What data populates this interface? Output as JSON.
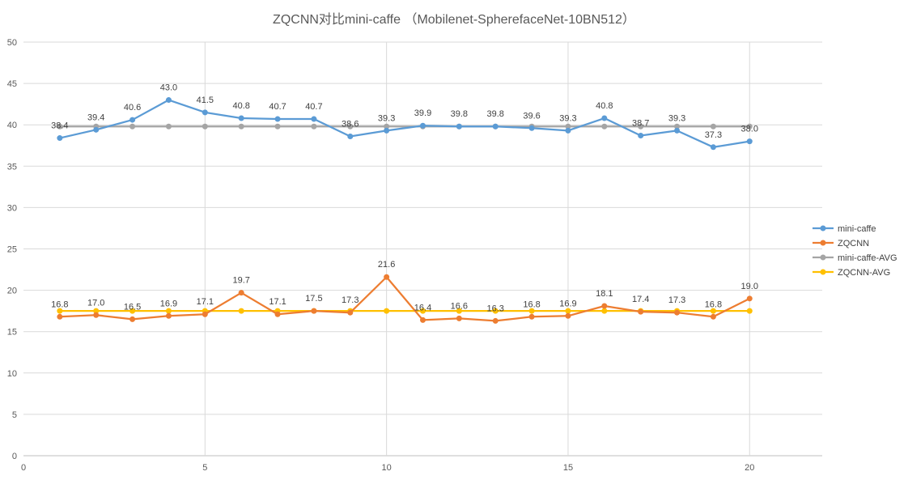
{
  "chart_data": {
    "type": "line",
    "title": "ZQCNN对比mini-caffe （Mobilenet-SpherefaceNet-10BN512）",
    "xlabel": "",
    "ylabel": "",
    "xlim": [
      0,
      22
    ],
    "ylim": [
      0,
      50
    ],
    "x_ticks": [
      0,
      5,
      10,
      15,
      20
    ],
    "y_ticks": [
      0,
      5,
      10,
      15,
      20,
      25,
      30,
      35,
      40,
      45,
      50
    ],
    "grid": true,
    "legend_position": "right",
    "x": [
      1,
      2,
      3,
      4,
      5,
      6,
      7,
      8,
      9,
      10,
      11,
      12,
      13,
      14,
      15,
      16,
      17,
      18,
      19,
      20
    ],
    "series": [
      {
        "name": "mini-caffe",
        "color": "#5B9BD5",
        "values": [
          38.4,
          39.4,
          40.6,
          43.0,
          41.5,
          40.8,
          40.7,
          40.7,
          38.6,
          39.3,
          39.9,
          39.8,
          39.8,
          39.6,
          39.3,
          40.8,
          38.7,
          39.3,
          37.3,
          38.0
        ],
        "labels": [
          "38.4",
          "39.4",
          "40.6",
          "43.0",
          "41.5",
          "40.8",
          "40.7",
          "40.7",
          "38.6",
          "39.3",
          "39.9",
          "39.8",
          "39.8",
          "39.6",
          "39.3",
          "40.8",
          "38.7",
          "39.3",
          "37.3",
          "38.0"
        ]
      },
      {
        "name": "ZQCNN",
        "color": "#ED7D31",
        "values": [
          16.8,
          17.0,
          16.5,
          16.9,
          17.1,
          19.7,
          17.1,
          17.5,
          17.3,
          21.6,
          16.4,
          16.6,
          16.3,
          16.8,
          16.9,
          18.1,
          17.4,
          17.3,
          16.8,
          19.0
        ],
        "labels": [
          "16.8",
          "17.0",
          "16.5",
          "16.9",
          "17.1",
          "19.7",
          "17.1",
          "17.5",
          "17.3",
          "21.6",
          "16.4",
          "16.6",
          "16.3",
          "16.8",
          "16.9",
          "18.1",
          "17.4",
          "17.3",
          "16.8",
          "19.0"
        ]
      },
      {
        "name": "mini-caffe-AVG",
        "color": "#A5A5A5",
        "values": [
          39.8,
          39.8,
          39.8,
          39.8,
          39.8,
          39.8,
          39.8,
          39.8,
          39.8,
          39.8,
          39.8,
          39.8,
          39.8,
          39.8,
          39.8,
          39.8,
          39.8,
          39.8,
          39.8,
          39.8
        ]
      },
      {
        "name": "ZQCNN-AVG",
        "color": "#FFC000",
        "values": [
          17.5,
          17.5,
          17.5,
          17.5,
          17.5,
          17.5,
          17.5,
          17.5,
          17.5,
          17.5,
          17.5,
          17.5,
          17.5,
          17.5,
          17.5,
          17.5,
          17.5,
          17.5,
          17.5,
          17.5
        ]
      }
    ]
  }
}
